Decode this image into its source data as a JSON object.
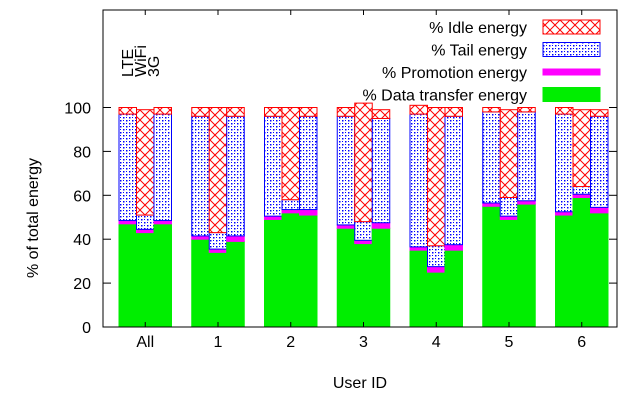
{
  "chart_data": {
    "type": "bar",
    "subtype": "grouped-stacked-percent",
    "xlabel": "User ID",
    "ylabel": "% of total energy",
    "ylim": [
      0,
      100
    ],
    "yticks": [
      0,
      20,
      40,
      60,
      80,
      100
    ],
    "categories": [
      "All",
      "1",
      "2",
      "3",
      "4",
      "5",
      "6"
    ],
    "bar_order": [
      "LTE",
      "WiFi",
      "3G"
    ],
    "bar_order_labels": [
      "LTE",
      "WiFi",
      "3G"
    ],
    "legend_position": "top-right",
    "series": [
      {
        "name": "% Idle energy",
        "color": "#ff0000",
        "pattern": "crosshatch",
        "values": [
          [
            3,
            48,
            3
          ],
          [
            4,
            57,
            4
          ],
          [
            4,
            42,
            4
          ],
          [
            4,
            54,
            4
          ],
          [
            4,
            63,
            4
          ],
          [
            2,
            40,
            2
          ],
          [
            3,
            35,
            3
          ]
        ]
      },
      {
        "name": "% Tail energy",
        "color": "#0000ff",
        "pattern": "dots",
        "values": [
          [
            48.5,
            6.5,
            48.5
          ],
          [
            54.5,
            7.5,
            54.5
          ],
          [
            45.5,
            4.5,
            42.5
          ],
          [
            49.5,
            8.5,
            47.5
          ],
          [
            60.5,
            9.5,
            58.5
          ],
          [
            41.5,
            8.5,
            40.5
          ],
          [
            44.5,
            3.5,
            41.5
          ]
        ]
      },
      {
        "name": "% Promotion energy",
        "color": "#ff00ff",
        "pattern": "solid",
        "values": [
          [
            1.5,
            1.5,
            1.5
          ],
          [
            1.5,
            1.5,
            2.5
          ],
          [
            1.5,
            1.5,
            2.5
          ],
          [
            1.5,
            1.5,
            2.5
          ],
          [
            1.5,
            2.5,
            2.5
          ],
          [
            1.5,
            1.5,
            1.5
          ],
          [
            1.5,
            1.5,
            2.5
          ]
        ]
      },
      {
        "name": "% Data transfer energy",
        "color": "#00ee00",
        "pattern": "solid",
        "values": [
          [
            47,
            43,
            47
          ],
          [
            40,
            34,
            39
          ],
          [
            49,
            52,
            51
          ],
          [
            45,
            38,
            45
          ],
          [
            35,
            25,
            35
          ],
          [
            55,
            49,
            56
          ],
          [
            51,
            59,
            52
          ]
        ]
      }
    ]
  }
}
